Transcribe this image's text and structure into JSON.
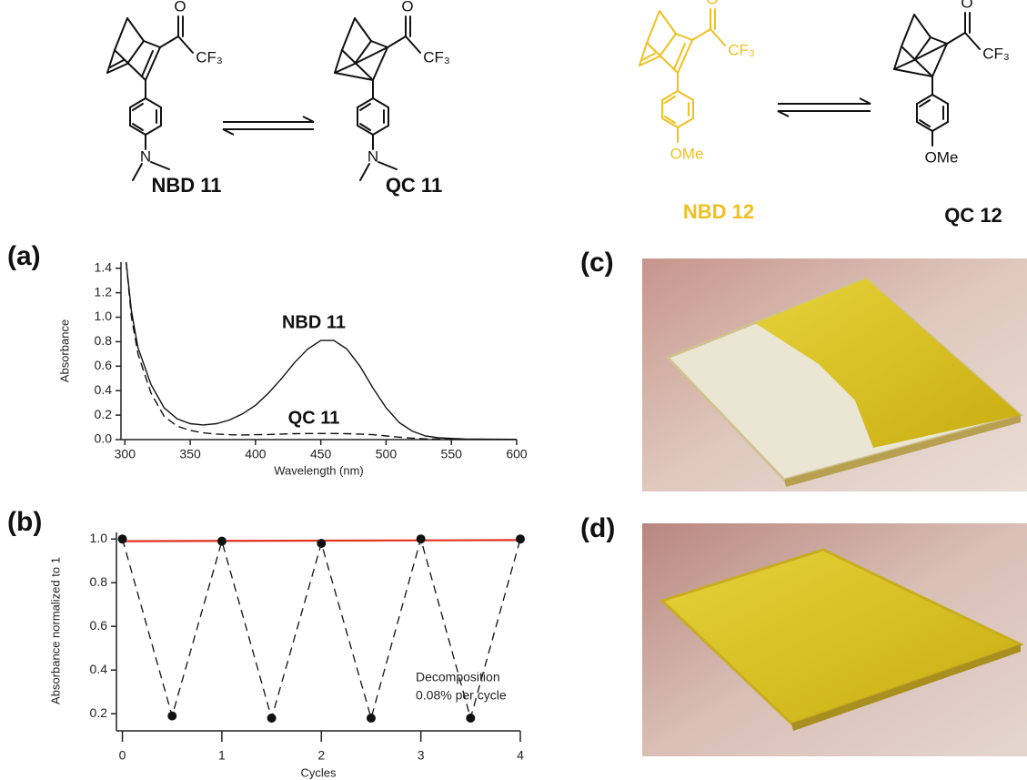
{
  "structures": [
    {
      "name": "NBD 11",
      "color": "#111111",
      "atoms": [
        "O",
        "CF₃",
        "N"
      ]
    },
    {
      "name": "QC 11",
      "color": "#111111",
      "atoms": [
        "O",
        "CF₃",
        "N"
      ]
    },
    {
      "name": "NBD 12",
      "color": "#f0c020",
      "atoms": [
        "O",
        "CF₃",
        "OMe"
      ]
    },
    {
      "name": "QC 12",
      "color": "#111111",
      "atoms": [
        "O",
        "CF₃",
        "OMe"
      ]
    }
  ],
  "photos": [
    {
      "label": "(c)"
    },
    {
      "label": "(d)"
    }
  ],
  "chart_data": [
    {
      "type": "line",
      "panel_label": "(a)",
      "x_label": "Wavelength (nm)",
      "y_label": "Absorbance",
      "x": [
        301,
        305,
        310,
        320,
        330,
        340,
        350,
        360,
        370,
        380,
        390,
        400,
        410,
        420,
        430,
        440,
        450,
        460,
        470,
        480,
        490,
        500,
        510,
        520,
        530,
        540,
        550,
        560,
        580,
        600
      ],
      "series": [
        {
          "name": "NBD 11",
          "color": "#111111",
          "dash": false,
          "values": [
            1.45,
            1.05,
            0.75,
            0.45,
            0.26,
            0.17,
            0.13,
            0.12,
            0.13,
            0.16,
            0.21,
            0.28,
            0.38,
            0.5,
            0.63,
            0.74,
            0.81,
            0.81,
            0.74,
            0.6,
            0.42,
            0.26,
            0.14,
            0.07,
            0.03,
            0.015,
            0.01,
            0.005,
            0.003,
            0.002
          ]
        },
        {
          "name": "QC 11",
          "color": "#111111",
          "dash": true,
          "values": [
            1.45,
            1.0,
            0.7,
            0.38,
            0.19,
            0.11,
            0.075,
            0.055,
            0.045,
            0.04,
            0.038,
            0.04,
            0.042,
            0.045,
            0.048,
            0.05,
            0.05,
            0.05,
            0.048,
            0.045,
            0.04,
            0.03,
            0.02,
            0.012,
            0.006,
            0.004,
            0.003,
            0.002,
            0.002,
            0.002
          ]
        }
      ],
      "xlim": [
        297,
        600
      ],
      "xticks": [
        300,
        350,
        400,
        450,
        500,
        550,
        600
      ],
      "ylim": [
        0,
        1.45
      ],
      "yticks": [
        {
          "value": 0,
          "label": "0.0"
        },
        0.2,
        0.4,
        0.6,
        0.8,
        {
          "value": 1,
          "label": "1.0"
        },
        1.2,
        1.4
      ],
      "grid": false
    },
    {
      "type": "scatter",
      "panel_label": "(b)",
      "x_label": "Cycles",
      "y_label": "Absorbance normalized to 1",
      "x": [
        0,
        0.5,
        1,
        1.5,
        2,
        2.5,
        3,
        3.5,
        4
      ],
      "values": [
        1.0,
        0.19,
        0.99,
        0.18,
        0.98,
        0.18,
        1.0,
        0.18,
        1.0
      ],
      "color": "#111111",
      "fit": {
        "x": [
          0,
          4
        ],
        "values": [
          0.99,
          0.995
        ],
        "color": "#e03020"
      },
      "annotation": [
        "Decomposition",
        "0.08% per cycle"
      ],
      "xlim": [
        -0.06,
        4.0
      ],
      "xticks": [
        0,
        1,
        2,
        3,
        4
      ],
      "ylim": [
        0.13,
        1.03
      ],
      "yticks": [
        0.2,
        0.4,
        0.6,
        0.8,
        {
          "value": 1,
          "label": "1.0"
        }
      ],
      "grid": false
    }
  ]
}
